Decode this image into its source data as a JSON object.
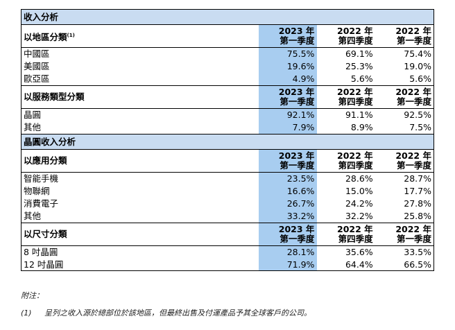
{
  "sections": [
    {
      "title": "收入分析",
      "groups": [
        {
          "header": "以地區分類",
          "header_sup": "(1)",
          "periods": [
            {
              "year": "2023 年",
              "quarter": "第一季度"
            },
            {
              "year": "2022 年",
              "quarter": "第四季度"
            },
            {
              "year": "2022 年",
              "quarter": "第一季度"
            }
          ],
          "rows": [
            {
              "label": "中國區",
              "values": [
                "75.5%",
                "69.1%",
                "75.4%"
              ]
            },
            {
              "label": "美國區",
              "values": [
                "19.6%",
                "25.3%",
                "19.0%"
              ]
            },
            {
              "label": "歐亞區",
              "values": [
                "4.9%",
                "5.6%",
                "5.6%"
              ]
            }
          ]
        },
        {
          "header": "以服務類型分類",
          "header_sup": "",
          "periods": [
            {
              "year": "2023 年",
              "quarter": "第一季度"
            },
            {
              "year": "2022 年",
              "quarter": "第四季度"
            },
            {
              "year": "2022 年",
              "quarter": "第一季度"
            }
          ],
          "rows": [
            {
              "label": "晶圓",
              "values": [
                "92.1%",
                "91.1%",
                "92.5%"
              ]
            },
            {
              "label": "其他",
              "values": [
                "7.9%",
                "8.9%",
                "7.5%"
              ]
            }
          ]
        }
      ]
    },
    {
      "title": "晶圓收入分析",
      "groups": [
        {
          "header": "以應用分類",
          "header_sup": "",
          "periods": [
            {
              "year": "2023 年",
              "quarter": "第一季度"
            },
            {
              "year": "2022 年",
              "quarter": "第四季度"
            },
            {
              "year": "2022 年",
              "quarter": "第一季度"
            }
          ],
          "rows": [
            {
              "label": "智能手機",
              "values": [
                "23.5%",
                "28.6%",
                "28.7%"
              ]
            },
            {
              "label": "物聯網",
              "values": [
                "16.6%",
                "15.0%",
                "17.7%"
              ]
            },
            {
              "label": "消費電子",
              "values": [
                "26.7%",
                "24.2%",
                "27.8%"
              ]
            },
            {
              "label": "其他",
              "values": [
                "33.2%",
                "32.2%",
                "25.8%"
              ]
            }
          ]
        },
        {
          "header": "以尺寸分類",
          "header_sup": "",
          "periods": [
            {
              "year": "2023 年",
              "quarter": "第一季度"
            },
            {
              "year": "2022 年",
              "quarter": "第四季度"
            },
            {
              "year": "2022 年",
              "quarter": "第一季度"
            }
          ],
          "rows": [
            {
              "label": "8 吋晶圓",
              "values": [
                "28.1%",
                "35.6%",
                "33.5%"
              ]
            },
            {
              "label": "12 吋晶圓",
              "values": [
                "71.9%",
                "64.4%",
                "66.5%"
              ]
            }
          ]
        }
      ]
    }
  ],
  "notes": {
    "title": "附注：",
    "items": [
      {
        "num": "(1)",
        "text": "呈列之收入源於總部位於該地區，但最終出售及付運產品予其全球客戶的公司。"
      }
    ]
  },
  "colors": {
    "section_bg": "#c9dcf1",
    "highlight_col": "#a8cdf0"
  }
}
